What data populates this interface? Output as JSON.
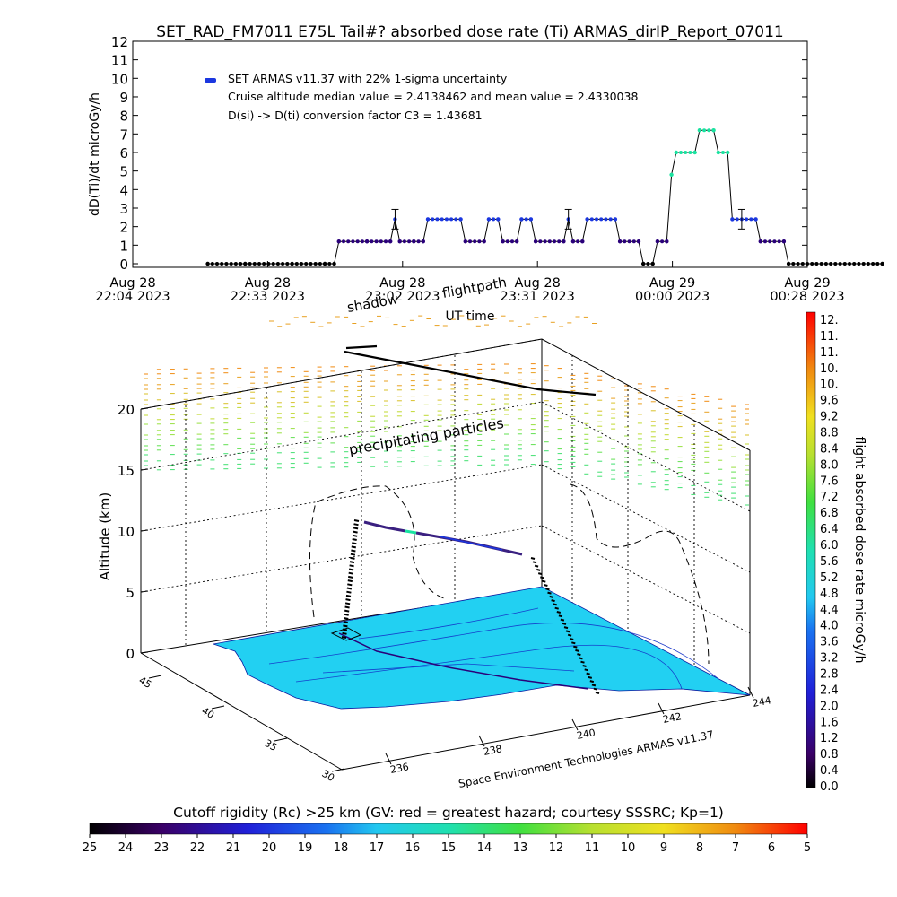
{
  "title": "SET_RAD_FM7011   E75L Tail#? absorbed dose rate (Ti) ARMAS_dirIP_Report_07011",
  "top_panel": {
    "ylabel": "dD(Ti)/dt microGy/h",
    "xlabel": "UT time",
    "legend_series": "SET ARMAS v11.37 with 22% 1-sigma uncertainty",
    "note_median_mean": "Cruise altitude median value = 2.4138462 and mean value = 2.4330038",
    "note_conversion": "D(si) -> D(ti) conversion factor C3 = 1.43681",
    "y_ticks": [
      "0",
      "1",
      "2",
      "3",
      "4",
      "5",
      "6",
      "7",
      "8",
      "9",
      "10",
      "11",
      "12"
    ],
    "x_ticks": [
      {
        "line1": "Aug 28",
        "line2": "22:04 2023"
      },
      {
        "line1": "Aug 28",
        "line2": "22:33 2023"
      },
      {
        "line1": "Aug 28",
        "line2": "23:02 2023"
      },
      {
        "line1": "Aug 28",
        "line2": "23:31 2023"
      },
      {
        "line1": "Aug 29",
        "line2": "00:00 2023"
      },
      {
        "line1": "Aug 29",
        "line2": "00:28 2023"
      }
    ]
  },
  "chart_data": {
    "type": "line",
    "x_unit": "minutes after 22:04 UT",
    "xlim": [
      0,
      144
    ],
    "ylim": [
      0,
      12
    ],
    "series": [
      {
        "name": "SET ARMAS v11.37 with 22% 1-sigma uncertainty",
        "points": [
          [
            16,
            0
          ],
          [
            24,
            0
          ],
          [
            34,
            0
          ],
          [
            41,
            0
          ],
          [
            43,
            0
          ],
          [
            44,
            1.2
          ],
          [
            50,
            1.2
          ],
          [
            55,
            1.2
          ],
          [
            56,
            2.4
          ],
          [
            57,
            1.2
          ],
          [
            60,
            1.2
          ],
          [
            62,
            1.2
          ],
          [
            63,
            2.4
          ],
          [
            70,
            2.4
          ],
          [
            71,
            1.2
          ],
          [
            75,
            1.2
          ],
          [
            76,
            2.4
          ],
          [
            78,
            2.4
          ],
          [
            79,
            1.2
          ],
          [
            82,
            1.2
          ],
          [
            83,
            2.4
          ],
          [
            85,
            2.4
          ],
          [
            86,
            1.2
          ],
          [
            92,
            1.2
          ],
          [
            93,
            2.4
          ],
          [
            94,
            1.2
          ],
          [
            96,
            1.2
          ],
          [
            97,
            2.4
          ],
          [
            103,
            2.4
          ],
          [
            104,
            1.2
          ],
          [
            108,
            1.2
          ],
          [
            109,
            0
          ],
          [
            111,
            0
          ],
          [
            112,
            1.2
          ],
          [
            114,
            1.2
          ],
          [
            115,
            4.8
          ],
          [
            116,
            6.0
          ],
          [
            120,
            6.0
          ],
          [
            121,
            7.2
          ],
          [
            124,
            7.2
          ],
          [
            125,
            6.0
          ],
          [
            127,
            6.0
          ],
          [
            128,
            2.4
          ],
          [
            133,
            2.4
          ],
          [
            134,
            1.2
          ],
          [
            139,
            1.2
          ],
          [
            140,
            0
          ],
          [
            160,
            0
          ]
        ]
      }
    ],
    "error_bars": [
      [
        56,
        2.4,
        0.53
      ],
      [
        93,
        2.4,
        0.53
      ],
      [
        130,
        2.4,
        0.53
      ]
    ]
  },
  "main_panel": {
    "zlabel": "Altitude (km)",
    "z_ticks": [
      "0",
      "5",
      "10",
      "15",
      "20"
    ],
    "lat_ticks": [
      "45",
      "40",
      "35",
      "30"
    ],
    "lon_ticks": [
      "236",
      "238",
      "240",
      "242",
      "244"
    ],
    "label_shadow": "shadow",
    "label_flightpath": "flightpath",
    "label_particles": "precipitating particles",
    "credit": "Space Environment Technologies ARMAS v11.37"
  },
  "right_colorbar": {
    "label": "flight absorbed dose rate microGy/h",
    "ticks": [
      "12.",
      "11.",
      "11.",
      "10.",
      "10.",
      "9.6",
      "9.2",
      "8.8",
      "8.4",
      "8.0",
      "7.6",
      "7.2",
      "6.8",
      "6.4",
      "6.0",
      "5.6",
      "5.2",
      "4.8",
      "4.4",
      "4.0",
      "3.6",
      "3.2",
      "2.8",
      "2.4",
      "2.0",
      "1.6",
      "1.2",
      "0.8",
      "0.4",
      "0.0"
    ]
  },
  "bottom_colorbar": {
    "label": "Cutoff rigidity (Rc) >25 km (GV: red = greatest hazard; courtesy SSSRC; Kp=1)",
    "ticks": [
      "25",
      "24",
      "23",
      "22",
      "21",
      "20",
      "19",
      "18",
      "17",
      "16",
      "15",
      "14",
      "13",
      "12",
      "11",
      "10",
      "9",
      "8",
      "7",
      "6",
      "5"
    ]
  },
  "colors": {
    "series_low": "#2a007a",
    "series_mid": "#1b37e0",
    "series_high": "#19e3a0",
    "ground": "#22d0f2",
    "axis": "#000000"
  }
}
